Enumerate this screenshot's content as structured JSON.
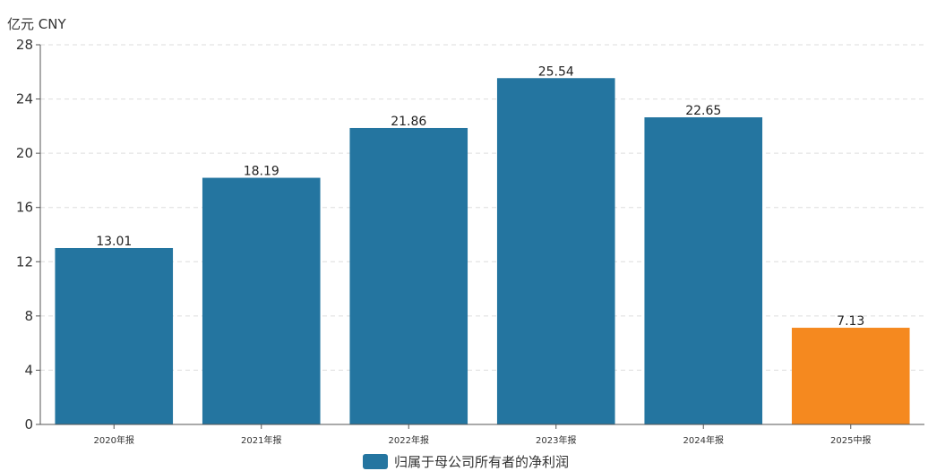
{
  "chart_data": {
    "type": "bar",
    "unit_label": "亿元  CNY",
    "categories": [
      "2020年报",
      "2021年报",
      "2022年报",
      "2023年报",
      "2024年报",
      "2025中报"
    ],
    "series": [
      {
        "name": "归属于母公司所有者的净利润",
        "values": [
          13.01,
          18.19,
          21.86,
          25.54,
          22.65,
          7.13
        ]
      }
    ],
    "value_labels": [
      "13.01",
      "18.19",
      "21.86",
      "25.54",
      "22.65",
      "7.13"
    ],
    "ylim": [
      0,
      28
    ],
    "yticks": [
      0,
      4,
      8,
      12,
      16,
      20,
      24,
      28
    ],
    "grid": true,
    "legend_position": "bottom-center",
    "colors": {
      "bar": "#2475a0",
      "highlight": "#f5891f"
    },
    "highlight_index": 5
  }
}
